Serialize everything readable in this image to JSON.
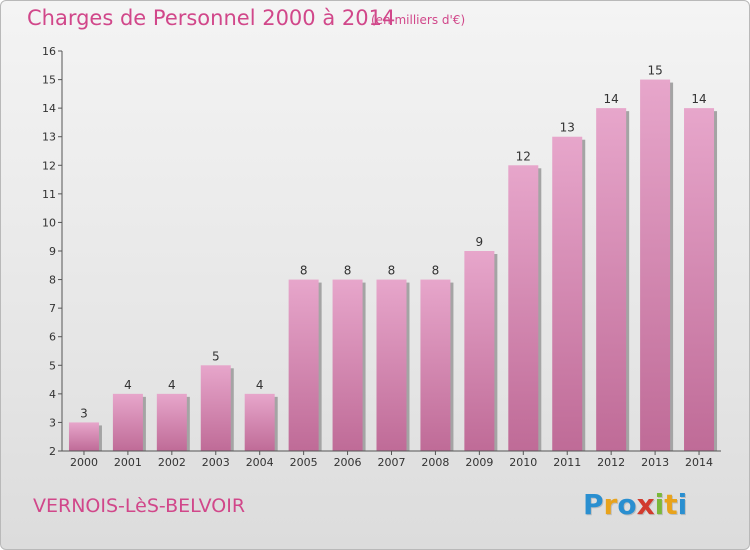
{
  "header": {
    "title": "Charges de Personnel 2000 à 2014",
    "subtitle": "(en milliers d'€)"
  },
  "footer": {
    "commune": "VERNOIS-LèS-BELVOIR",
    "logo": [
      "P",
      "r",
      "o",
      "x",
      "i",
      "t",
      "i"
    ],
    "logo_colors": [
      "#2a8fd0",
      "#e8a31c",
      "#2a8fd0",
      "#d23b2d",
      "#7ab83a",
      "#e8a31c",
      "#2a8fd0"
    ]
  },
  "colors": {
    "bar_top": "#e7a6cb",
    "bar_bottom": "#bf6b97",
    "bar_shadow": "#a4a4a4",
    "axis": "#555555",
    "text": "#333333"
  },
  "chart_data": {
    "type": "bar",
    "title": "Charges de Personnel 2000 à 2014",
    "subtitle": "(en milliers d'€)",
    "categories": [
      "2000",
      "2001",
      "2002",
      "2003",
      "2004",
      "2005",
      "2006",
      "2007",
      "2008",
      "2009",
      "2010",
      "2011",
      "2012",
      "2013",
      "2014"
    ],
    "values": [
      3,
      4,
      4,
      5,
      4,
      8,
      8,
      8,
      8,
      9,
      12,
      13,
      14,
      15,
      14
    ],
    "value_labels": [
      "3",
      "4",
      "4",
      "5",
      "4",
      "8",
      "8",
      "8",
      "8",
      "9",
      "12",
      "13",
      "14",
      "15",
      "14"
    ],
    "ylim": [
      2,
      16
    ],
    "yticks": [
      "2",
      "3",
      "4",
      "5",
      "6",
      "7",
      "8",
      "9",
      "10",
      "11",
      "12",
      "13",
      "14",
      "15",
      "16"
    ],
    "grid": false,
    "legend": "none"
  }
}
